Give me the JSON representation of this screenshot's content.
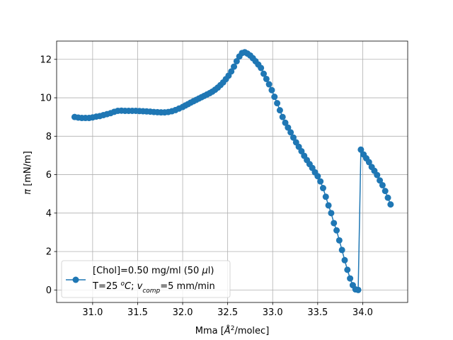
{
  "chart_data": {
    "type": "line",
    "title": "",
    "xlabel": "Mma [Å²/molec]",
    "xlabel_parts": {
      "pre": "Mma [",
      "sym": "Å",
      "sup": "2",
      "post": "/molec]"
    },
    "ylabel": "π [mN/m]",
    "ylabel_parts": {
      "sym": "π",
      "post": " [mN/m]"
    },
    "xlim": [
      30.6,
      34.5
    ],
    "ylim": [
      -0.65,
      12.95
    ],
    "xticks": [
      31.0,
      31.5,
      32.0,
      32.5,
      33.0,
      33.5,
      34.0
    ],
    "xtick_labels": [
      "31.0",
      "31.5",
      "32.0",
      "32.5",
      "33.0",
      "33.5",
      "34.0"
    ],
    "yticks": [
      0,
      2,
      4,
      6,
      8,
      10,
      12
    ],
    "ytick_labels": [
      "0",
      "2",
      "4",
      "6",
      "8",
      "10",
      "12"
    ],
    "grid": true,
    "legend_position": "lower-left",
    "color": "#1f77b4",
    "legend": {
      "line1": "[Chol]=0.50 mg/ml (50 μl)",
      "line1_parts": {
        "a": "[Chol]=0.50 mg/ml (50 ",
        "b": "μ",
        "c": "l)"
      },
      "line2": "T=25 °C; v_comp=5 mm/min",
      "line2_parts": {
        "a": "T=25 ",
        "b_sup": "o",
        "c": "C",
        "d": "; ",
        "e": "v",
        "f_sub": "comp",
        "g": "=5 mm/min"
      }
    },
    "series": [
      {
        "x": [
          30.8,
          30.84,
          30.88,
          30.92,
          30.96,
          31.0,
          31.04,
          31.08,
          31.12,
          31.16,
          31.2,
          31.24,
          31.28,
          31.32,
          31.36,
          31.4,
          31.44,
          31.48,
          31.52,
          31.56,
          31.6,
          31.64,
          31.68,
          31.72,
          31.76,
          31.8,
          31.84,
          31.88,
          31.92,
          31.96,
          32.0,
          32.03,
          32.06,
          32.09,
          32.12,
          32.15,
          32.18,
          32.21,
          32.24,
          32.27,
          32.3,
          32.33,
          32.36,
          32.39,
          32.42,
          32.45,
          32.48,
          32.51,
          32.54,
          32.57,
          32.6,
          32.63,
          32.66,
          32.69,
          32.72,
          32.75,
          32.78,
          32.81,
          32.84,
          32.87,
          32.9,
          32.93,
          32.96,
          32.99,
          33.02,
          33.05,
          33.08,
          33.11,
          33.14,
          33.17,
          33.2,
          33.23,
          33.26,
          33.29,
          33.32,
          33.35,
          33.38,
          33.41,
          33.44,
          33.47,
          33.5,
          33.53,
          33.56,
          33.59,
          33.62,
          33.65,
          33.68,
          33.71,
          33.74,
          33.77,
          33.8,
          33.83,
          33.86,
          33.89,
          33.92,
          33.95,
          33.98,
          34.01,
          34.04,
          34.07,
          34.1,
          34.13,
          34.16,
          34.19,
          34.22,
          34.25,
          34.28,
          34.31
        ],
        "y": [
          9.0,
          8.97,
          8.95,
          8.95,
          8.95,
          8.98,
          9.02,
          9.05,
          9.1,
          9.15,
          9.2,
          9.27,
          9.32,
          9.33,
          9.32,
          9.32,
          9.32,
          9.32,
          9.31,
          9.3,
          9.29,
          9.28,
          9.26,
          9.25,
          9.24,
          9.24,
          9.26,
          9.3,
          9.36,
          9.44,
          9.52,
          9.6,
          9.67,
          9.75,
          9.82,
          9.89,
          9.96,
          10.03,
          10.1,
          10.17,
          10.24,
          10.32,
          10.42,
          10.53,
          10.66,
          10.8,
          10.97,
          11.15,
          11.37,
          11.62,
          11.9,
          12.15,
          12.33,
          12.37,
          12.3,
          12.2,
          12.06,
          11.9,
          11.73,
          11.55,
          11.25,
          10.98,
          10.7,
          10.4,
          10.05,
          9.72,
          9.35,
          9.0,
          8.7,
          8.45,
          8.2,
          7.93,
          7.68,
          7.45,
          7.22,
          6.98,
          6.76,
          6.55,
          6.35,
          6.12,
          5.92,
          5.65,
          5.3,
          4.85,
          4.4,
          4.0,
          3.48,
          3.1,
          2.58,
          2.08,
          1.55,
          1.05,
          0.6,
          0.25,
          0.03,
          0.0,
          7.3,
          7.05,
          6.85,
          6.65,
          6.4,
          6.2,
          5.98,
          5.7,
          5.45,
          5.15,
          4.8,
          4.45
        ]
      }
    ]
  }
}
